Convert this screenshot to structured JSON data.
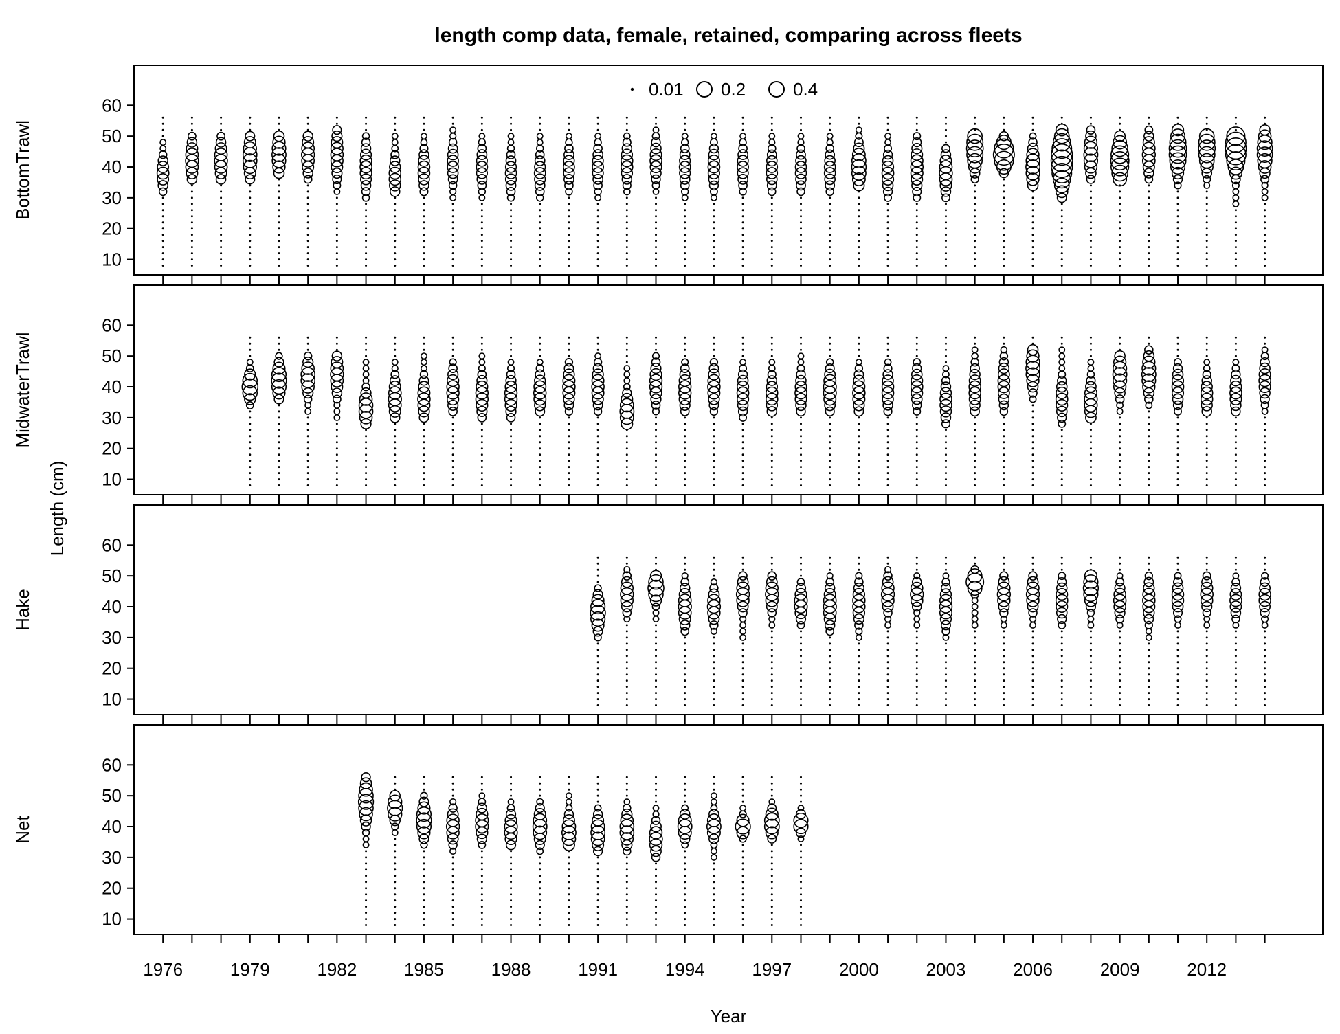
{
  "chart_data": {
    "type": "scatter",
    "title": "length comp data, female, retained, comparing across fleets",
    "xlabel": "Year",
    "ylabel": "Length (cm)",
    "x_range": [
      1975,
      2016
    ],
    "y_range": [
      5,
      73
    ],
    "y_ticks": [
      10,
      20,
      30,
      40,
      50,
      60
    ],
    "x_ticks": [
      1976,
      1979,
      1982,
      1985,
      1988,
      1991,
      1994,
      1997,
      2000,
      2003,
      2006,
      2009,
      2012
    ],
    "length_bins": [
      8,
      56
    ],
    "bin_step": 2,
    "legend": {
      "position": "top-center",
      "entries": [
        {
          "label": "0.01",
          "value": 0.01
        },
        {
          "label": "0.2",
          "value": 0.2
        },
        {
          "label": "0.4",
          "value": 0.4
        }
      ]
    },
    "panels": [
      {
        "name": "BottomTrawl",
        "years": [
          1976,
          1977,
          1978,
          1979,
          1980,
          1981,
          1982,
          1983,
          1984,
          1985,
          1986,
          1987,
          1988,
          1989,
          1990,
          1991,
          1992,
          1993,
          1994,
          1995,
          1996,
          1997,
          1998,
          1999,
          2000,
          2001,
          2002,
          2003,
          2004,
          2005,
          2006,
          2007,
          2008,
          2009,
          2010,
          2011,
          2012,
          2013,
          2014
        ],
        "modes": [
          38,
          42,
          42,
          43,
          44,
          44,
          44,
          40,
          37,
          39,
          41,
          40,
          38,
          38,
          40,
          40,
          41,
          42,
          40,
          40,
          40,
          39,
          39,
          39,
          40,
          38,
          40,
          38,
          46,
          44,
          40,
          42,
          44,
          42,
          44,
          45,
          46,
          46,
          45
        ],
        "spreads": [
          4,
          5,
          5,
          5,
          5,
          5,
          6,
          6,
          5,
          5,
          5,
          5,
          5,
          5,
          5,
          5,
          5,
          5,
          5,
          5,
          5,
          5,
          5,
          5,
          5,
          5,
          6,
          5,
          5,
          3,
          5,
          6,
          5,
          5,
          5,
          5,
          5,
          5,
          5
        ],
        "ranges": [
          [
            32,
            48
          ],
          [
            36,
            50
          ],
          [
            36,
            50
          ],
          [
            36,
            50
          ],
          [
            38,
            50
          ],
          [
            36,
            50
          ],
          [
            32,
            52
          ],
          [
            30,
            50
          ],
          [
            32,
            50
          ],
          [
            32,
            50
          ],
          [
            30,
            52
          ],
          [
            30,
            50
          ],
          [
            30,
            50
          ],
          [
            30,
            50
          ],
          [
            32,
            50
          ],
          [
            30,
            50
          ],
          [
            32,
            50
          ],
          [
            32,
            52
          ],
          [
            30,
            50
          ],
          [
            30,
            50
          ],
          [
            32,
            50
          ],
          [
            32,
            50
          ],
          [
            32,
            50
          ],
          [
            32,
            50
          ],
          [
            34,
            52
          ],
          [
            30,
            50
          ],
          [
            30,
            50
          ],
          [
            30,
            46
          ],
          [
            36,
            50
          ],
          [
            38,
            50
          ],
          [
            34,
            50
          ],
          [
            30,
            52
          ],
          [
            36,
            52
          ],
          [
            36,
            50
          ],
          [
            36,
            52
          ],
          [
            34,
            52
          ],
          [
            34,
            50
          ],
          [
            28,
            50
          ],
          [
            30,
            52
          ]
        ],
        "peak_sizes": [
          0.08,
          0.1,
          0.1,
          0.12,
          0.12,
          0.1,
          0.09,
          0.08,
          0.08,
          0.08,
          0.07,
          0.07,
          0.07,
          0.07,
          0.07,
          0.07,
          0.08,
          0.08,
          0.07,
          0.08,
          0.07,
          0.07,
          0.07,
          0.07,
          0.13,
          0.08,
          0.09,
          0.1,
          0.18,
          0.3,
          0.12,
          0.32,
          0.12,
          0.22,
          0.1,
          0.2,
          0.18,
          0.3,
          0.15
        ]
      },
      {
        "name": "MidwaterTrawl",
        "years": [
          1979,
          1980,
          1981,
          1982,
          1983,
          1984,
          1985,
          1986,
          1987,
          1988,
          1989,
          1990,
          1991,
          1992,
          1993,
          1994,
          1995,
          1996,
          1997,
          1998,
          1999,
          2000,
          2001,
          2002,
          2003,
          2004,
          2005,
          2006,
          2007,
          2008,
          2009,
          2010,
          2011,
          2012,
          2013,
          2014
        ],
        "modes": [
          40,
          42,
          43,
          44,
          33,
          36,
          36,
          39,
          37,
          37,
          38,
          40,
          40,
          32,
          41,
          39,
          40,
          38,
          37,
          38,
          39,
          38,
          39,
          40,
          35,
          39,
          41,
          46,
          36,
          35,
          44,
          44,
          40,
          37,
          38,
          42
        ],
        "spreads": [
          3,
          4,
          4,
          5,
          4,
          5,
          5,
          5,
          5,
          5,
          5,
          5,
          5,
          4,
          5,
          5,
          5,
          5,
          5,
          5,
          5,
          5,
          5,
          5,
          5,
          6,
          6,
          5,
          5,
          5,
          5,
          5,
          5,
          5,
          5,
          5
        ],
        "ranges": [
          [
            34,
            48
          ],
          [
            36,
            50
          ],
          [
            32,
            50
          ],
          [
            30,
            50
          ],
          [
            28,
            48
          ],
          [
            30,
            48
          ],
          [
            30,
            50
          ],
          [
            32,
            48
          ],
          [
            30,
            50
          ],
          [
            30,
            48
          ],
          [
            32,
            48
          ],
          [
            32,
            48
          ],
          [
            32,
            50
          ],
          [
            28,
            46
          ],
          [
            32,
            50
          ],
          [
            32,
            48
          ],
          [
            32,
            48
          ],
          [
            30,
            48
          ],
          [
            32,
            48
          ],
          [
            32,
            50
          ],
          [
            32,
            48
          ],
          [
            32,
            48
          ],
          [
            32,
            48
          ],
          [
            32,
            48
          ],
          [
            28,
            46
          ],
          [
            32,
            52
          ],
          [
            32,
            52
          ],
          [
            36,
            52
          ],
          [
            28,
            52
          ],
          [
            30,
            48
          ],
          [
            32,
            50
          ],
          [
            34,
            52
          ],
          [
            32,
            48
          ],
          [
            32,
            48
          ],
          [
            32,
            48
          ],
          [
            32,
            52
          ]
        ],
        "peak_sizes": [
          0.16,
          0.14,
          0.12,
          0.1,
          0.12,
          0.1,
          0.09,
          0.09,
          0.09,
          0.09,
          0.09,
          0.09,
          0.09,
          0.12,
          0.09,
          0.09,
          0.09,
          0.08,
          0.08,
          0.08,
          0.1,
          0.09,
          0.08,
          0.08,
          0.08,
          0.08,
          0.08,
          0.12,
          0.08,
          0.1,
          0.12,
          0.12,
          0.08,
          0.08,
          0.08,
          0.08
        ]
      },
      {
        "name": "Hake",
        "years": [
          1991,
          1992,
          1993,
          1994,
          1995,
          1996,
          1997,
          1998,
          1999,
          2000,
          2001,
          2002,
          2003,
          2004,
          2005,
          2006,
          2007,
          2008,
          2009,
          2010,
          2011,
          2012,
          2013,
          2014
        ],
        "modes": [
          38,
          44,
          46,
          40,
          40,
          44,
          44,
          41,
          40,
          41,
          44,
          44,
          40,
          48,
          44,
          44,
          42,
          46,
          42,
          42,
          43,
          44,
          42,
          43
        ],
        "spreads": [
          4,
          4,
          3,
          5,
          4,
          4,
          4,
          4,
          5,
          5,
          4,
          3,
          5,
          2,
          4,
          4,
          5,
          4,
          4,
          5,
          4,
          4,
          4,
          4
        ],
        "ranges": [
          [
            30,
            46
          ],
          [
            36,
            52
          ],
          [
            36,
            50
          ],
          [
            32,
            50
          ],
          [
            32,
            48
          ],
          [
            30,
            50
          ],
          [
            34,
            50
          ],
          [
            34,
            48
          ],
          [
            32,
            50
          ],
          [
            30,
            50
          ],
          [
            34,
            52
          ],
          [
            34,
            50
          ],
          [
            30,
            50
          ],
          [
            34,
            52
          ],
          [
            34,
            50
          ],
          [
            34,
            50
          ],
          [
            34,
            50
          ],
          [
            34,
            50
          ],
          [
            34,
            50
          ],
          [
            30,
            50
          ],
          [
            34,
            50
          ],
          [
            34,
            50
          ],
          [
            34,
            50
          ],
          [
            34,
            50
          ]
        ],
        "peak_sizes": [
          0.14,
          0.1,
          0.16,
          0.1,
          0.1,
          0.1,
          0.1,
          0.1,
          0.1,
          0.09,
          0.1,
          0.1,
          0.09,
          0.2,
          0.1,
          0.1,
          0.08,
          0.14,
          0.09,
          0.09,
          0.08,
          0.09,
          0.08,
          0.08
        ]
      },
      {
        "name": "Net",
        "years": [
          1983,
          1984,
          1985,
          1986,
          1987,
          1988,
          1989,
          1990,
          1991,
          1992,
          1993,
          1994,
          1995,
          1996,
          1997,
          1998
        ],
        "modes": [
          48,
          46,
          42,
          40,
          41,
          39,
          40,
          38,
          38,
          39,
          36,
          40,
          40,
          40,
          41,
          41
        ],
        "spreads": [
          5,
          3,
          4,
          4,
          4,
          4,
          4,
          4,
          4,
          4,
          4,
          3,
          3,
          2,
          3,
          2
        ],
        "ranges": [
          [
            34,
            56
          ],
          [
            38,
            50
          ],
          [
            34,
            50
          ],
          [
            32,
            48
          ],
          [
            34,
            50
          ],
          [
            34,
            48
          ],
          [
            32,
            48
          ],
          [
            34,
            50
          ],
          [
            32,
            46
          ],
          [
            32,
            48
          ],
          [
            30,
            46
          ],
          [
            34,
            46
          ],
          [
            30,
            50
          ],
          [
            36,
            46
          ],
          [
            36,
            48
          ],
          [
            36,
            46
          ]
        ],
        "peak_sizes": [
          0.14,
          0.14,
          0.14,
          0.1,
          0.1,
          0.1,
          0.12,
          0.12,
          0.12,
          0.12,
          0.1,
          0.12,
          0.12,
          0.14,
          0.14,
          0.14
        ]
      }
    ]
  }
}
